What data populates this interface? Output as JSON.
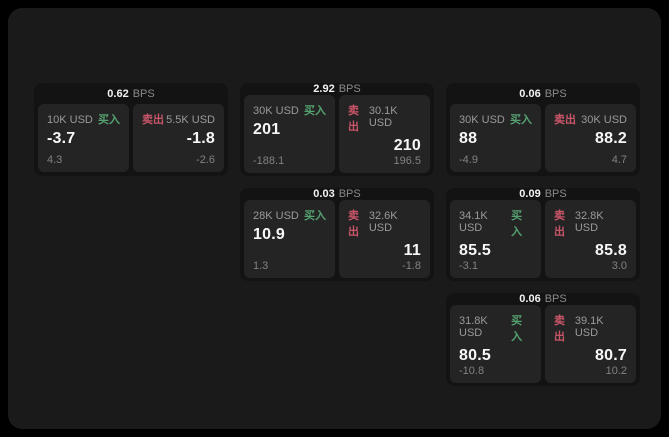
{
  "labels": {
    "unit": "BPS",
    "buy": "买入",
    "sell": "卖出"
  },
  "colors": {
    "buy_green": "#55a271",
    "sell_red": "#c95569",
    "page_background": "#1a1a1a",
    "card_background": "#131313",
    "panel_background": "#242424"
  },
  "cards": [
    {
      "bps": "0.62",
      "buy_amount": "10K USD",
      "buy_value": "-3.7",
      "buy_change": "4.3",
      "sell_amount": "5.5K USD",
      "sell_value": "-1.8",
      "sell_change": "-2.6"
    },
    {
      "bps": "2.92",
      "buy_amount": "30K USD",
      "buy_value": "201",
      "buy_change": "-188.1",
      "sell_amount": "30.1K USD",
      "sell_value": "210",
      "sell_change": "196.5"
    },
    {
      "bps": "0.06",
      "buy_amount": "30K USD",
      "buy_value": "88",
      "buy_change": "-4.9",
      "sell_amount": "30K USD",
      "sell_value": "88.2",
      "sell_change": "4.7"
    },
    {
      "bps": "0.03",
      "buy_amount": "28K USD",
      "buy_value": "10.9",
      "buy_change": "1.3",
      "sell_amount": "32.6K USD",
      "sell_value": "11",
      "sell_change": "-1.8"
    },
    {
      "bps": "0.09",
      "buy_amount": "34.1K USD",
      "buy_value": "85.5",
      "buy_change": "-3.1",
      "sell_amount": "32.8K USD",
      "sell_value": "85.8",
      "sell_change": "3.0"
    },
    {
      "bps": "0.06",
      "buy_amount": "31.8K USD",
      "buy_value": "80.5",
      "buy_change": "-10.8",
      "sell_amount": "39.1K USD",
      "sell_value": "80.7",
      "sell_change": "10.2"
    }
  ]
}
